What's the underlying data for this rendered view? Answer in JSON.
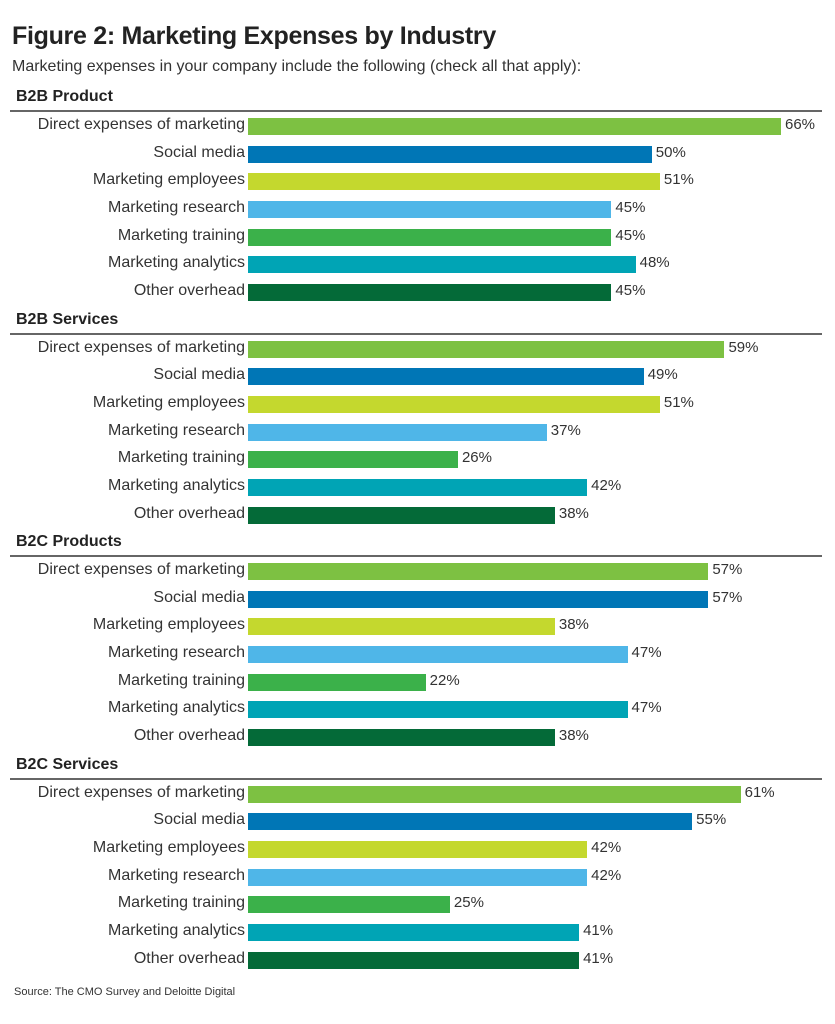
{
  "chart_data": {
    "type": "bar",
    "orientation": "horizontal",
    "title": "Figure 2: Marketing Expenses by Industry",
    "subtitle": "Marketing expenses in your company include the following (check all that apply):",
    "source": "Source: The CMO Survey and Deloitte Digital",
    "categories": [
      "Direct expenses of marketing",
      "Social media",
      "Marketing employees",
      "Marketing research",
      "Marketing training",
      "Marketing analytics",
      "Other overhead"
    ],
    "colors": [
      "#7dc142",
      "#0076b6",
      "#c4d82e",
      "#4fb6e8",
      "#3bb14a",
      "#00a4b5",
      "#046a38"
    ],
    "value_suffix": "%",
    "panels": [
      {
        "name": "B2B Product",
        "values": [
          66,
          50,
          51,
          45,
          45,
          48,
          45
        ]
      },
      {
        "name": "B2B Services",
        "values": [
          59,
          49,
          51,
          37,
          26,
          42,
          38
        ]
      },
      {
        "name": "B2C Products",
        "values": [
          57,
          57,
          38,
          47,
          22,
          47,
          38
        ]
      },
      {
        "name": "B2C Services",
        "values": [
          61,
          55,
          42,
          42,
          25,
          41,
          41
        ]
      }
    ],
    "xlim": [
      0,
      66
    ],
    "grid": false
  }
}
